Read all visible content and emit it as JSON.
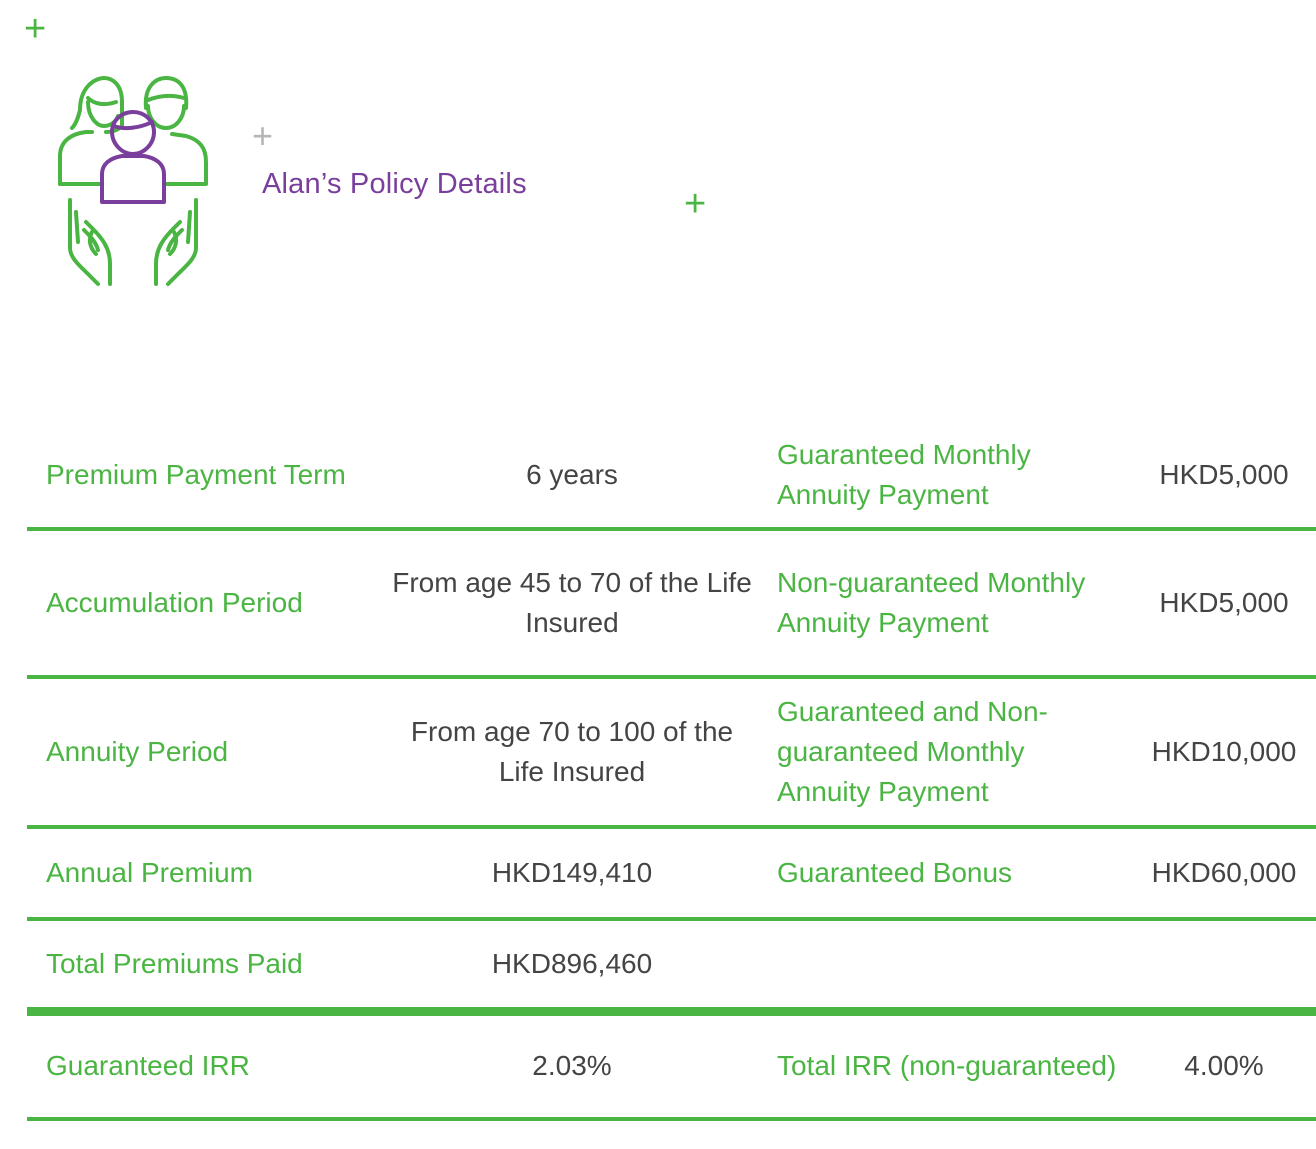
{
  "title": "Alan’s Policy Details",
  "decor": {
    "plus": "+"
  },
  "colors": {
    "accent_green": "#4bb543",
    "accent_purple": "#7a3f9d",
    "value_text": "#444444",
    "plus_grey": "#b6b6b6"
  },
  "icon": "family-protection-icon",
  "rows": [
    {
      "label_left": "Premium Payment Term",
      "value_left": "6 years",
      "label_right": "Guaranteed Monthly Annuity Payment",
      "value_right": "HKD5,000"
    },
    {
      "label_left": "Accumulation Period",
      "value_left": "From age 45 to 70 of the Life Insured",
      "label_right": "Non-guaranteed Monthly Annuity Payment",
      "value_right": "HKD5,000"
    },
    {
      "label_left": "Annuity Period",
      "value_left": "From age 70 to 100 of the Life Insured",
      "label_right": "Guaranteed and Non-guaranteed Monthly Annuity Payment",
      "value_right": "HKD10,000"
    },
    {
      "label_left": "Annual Premium",
      "value_left": "HKD149,410",
      "label_right": "Guaranteed Bonus",
      "value_right": "HKD60,000"
    },
    {
      "label_left": "Total Premiums Paid",
      "value_left": "HKD896,460",
      "label_right": "",
      "value_right": ""
    },
    {
      "label_left": "Guaranteed IRR",
      "value_left": "2.03%",
      "label_right": "Total IRR (non-guaranteed)",
      "value_right": "4.00%"
    }
  ]
}
